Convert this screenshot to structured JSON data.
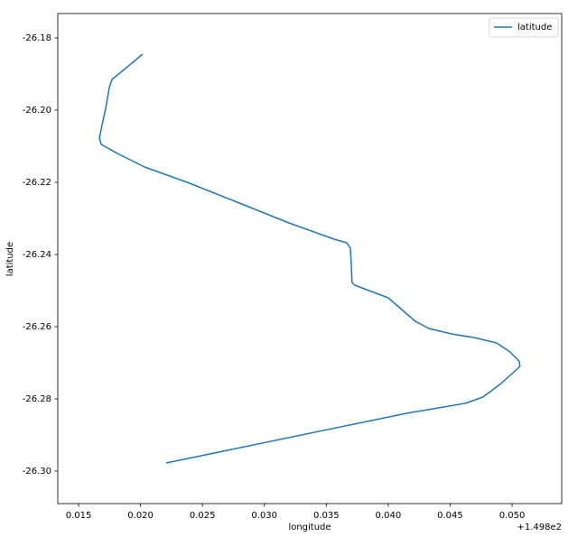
{
  "chart_data": {
    "type": "line",
    "xlabel": "longitude",
    "ylabel": "latitude",
    "offset_text": "+1.498e2",
    "x": [
      149.82017,
      149.8193,
      149.8177,
      149.81748,
      149.81719,
      149.8169,
      149.81668,
      149.81682,
      149.81813,
      149.82032,
      149.82396,
      149.82761,
      149.83198,
      149.83563,
      149.83665,
      149.83694,
      149.83701,
      149.83708,
      149.8373,
      149.84,
      149.84109,
      149.84219,
      149.84328,
      149.8451,
      149.84692,
      149.84875,
      149.84984,
      149.85057,
      149.85064,
      149.84911,
      149.84765,
      149.8462,
      149.84146,
      149.82207
    ],
    "series": [
      {
        "name": "latitude",
        "color": "#1f77b4",
        "values": [
          -26.1845,
          -26.187,
          -26.1915,
          -26.19375,
          -26.1995,
          -26.204,
          -26.20775,
          -26.2095,
          -26.212,
          -26.21575,
          -26.22025,
          -26.22525,
          -26.23125,
          -26.23575,
          -26.23675,
          -26.23825,
          -26.242,
          -26.24775,
          -26.2485,
          -26.252,
          -26.25525,
          -26.2585,
          -26.2605,
          -26.262,
          -26.263,
          -26.2645,
          -26.267,
          -26.2695,
          -26.271,
          -26.27575,
          -26.2795,
          -26.28125,
          -26.284,
          -26.29775
        ]
      }
    ],
    "xlim": [
      149.81332,
      149.85401
    ],
    "ylim": [
      -26.309,
      -26.17325
    ],
    "xticks": [
      {
        "value": 149.815,
        "label": "0.015"
      },
      {
        "value": 149.82,
        "label": "0.020"
      },
      {
        "value": 149.825,
        "label": "0.025"
      },
      {
        "value": 149.83,
        "label": "0.030"
      },
      {
        "value": 149.835,
        "label": "0.035"
      },
      {
        "value": 149.84,
        "label": "0.040"
      },
      {
        "value": 149.845,
        "label": "0.045"
      },
      {
        "value": 149.85,
        "label": "0.050"
      }
    ],
    "yticks": [
      -26.18,
      {
        "value": -26.2,
        "label": "-26.20"
      },
      -26.22,
      -26.24,
      -26.26,
      -26.28,
      {
        "value": -26.3,
        "label": "-26.30"
      }
    ],
    "grid": false,
    "legend": "upper right"
  }
}
